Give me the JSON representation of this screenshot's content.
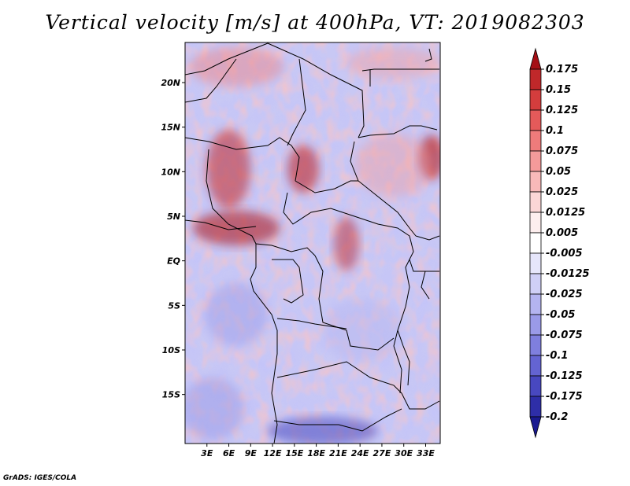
{
  "title": "Vertical velocity [m/s] at 400hPa, VT: 2019082303",
  "credit": "GrADS: IGES/COLA",
  "map": {
    "lon_range": [
      0,
      35
    ],
    "lat_range": [
      -20.5,
      24.5
    ],
    "lon_ticks": [
      {
        "value": 3,
        "label": "3E"
      },
      {
        "value": 6,
        "label": "6E"
      },
      {
        "value": 9,
        "label": "9E"
      },
      {
        "value": 12,
        "label": "12E"
      },
      {
        "value": 15,
        "label": "15E"
      },
      {
        "value": 18,
        "label": "18E"
      },
      {
        "value": 21,
        "label": "21E"
      },
      {
        "value": 24,
        "label": "24E"
      },
      {
        "value": 27,
        "label": "27E"
      },
      {
        "value": 30,
        "label": "30E"
      },
      {
        "value": 33,
        "label": "33E"
      }
    ],
    "lat_ticks": [
      {
        "value": 20,
        "label": "20N"
      },
      {
        "value": 15,
        "label": "15N"
      },
      {
        "value": 10,
        "label": "10N"
      },
      {
        "value": 5,
        "label": "5N"
      },
      {
        "value": 0,
        "label": "EQ"
      },
      {
        "value": -5,
        "label": "5S"
      },
      {
        "value": -10,
        "label": "10S"
      },
      {
        "value": -15,
        "label": "15S"
      }
    ]
  },
  "colorbar": {
    "levels": [
      "0.175",
      "0.15",
      "0.125",
      "0.1",
      "0.075",
      "0.05",
      "0.025",
      "0.0125",
      "0.005",
      "-0.005",
      "-0.0125",
      "-0.025",
      "-0.05",
      "-0.075",
      "-0.1",
      "-0.125",
      "-0.175",
      "-0.2"
    ],
    "colors": [
      "#a50f15",
      "#c0282a",
      "#d43d3d",
      "#e45a5a",
      "#ee7b7b",
      "#f49a9a",
      "#f8b9b9",
      "#fbd6d6",
      "#fdeeee",
      "#ffffff",
      "#e6e6fb",
      "#cfcff6",
      "#b4b4f0",
      "#9a9ae8",
      "#7f7fde",
      "#6464d2",
      "#4848c0",
      "#2e2ea8",
      "#1a1a90"
    ]
  },
  "colors": {
    "background": "#ffffff",
    "border": "#000000",
    "warm": "#d43d3d",
    "cool": "#7f7fde"
  }
}
